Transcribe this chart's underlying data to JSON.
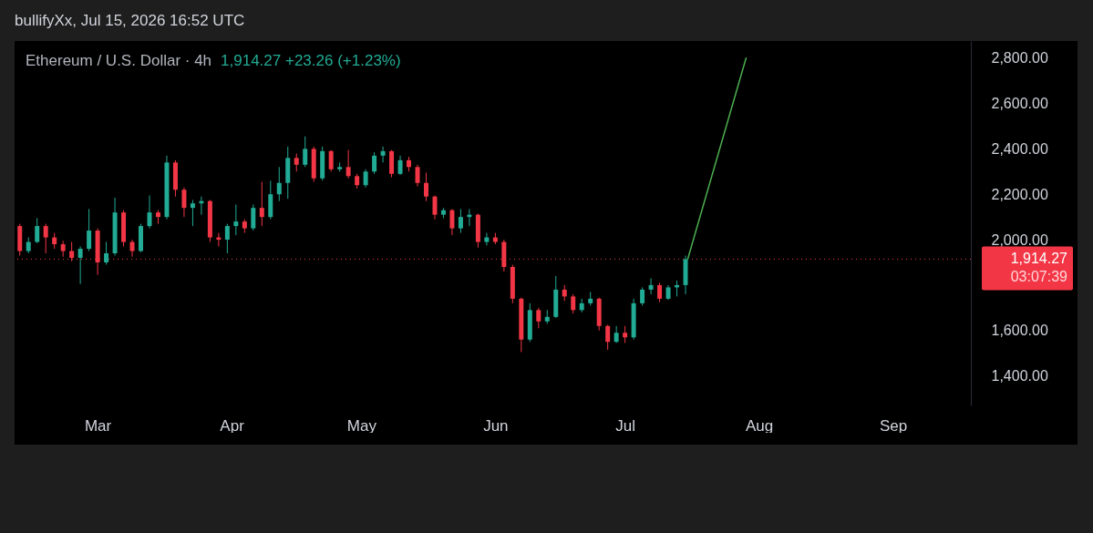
{
  "chart_data": {
    "type": "candlestick",
    "title": "Ethereum / U.S. Dollar · 4h",
    "subtitle": "1,914.27 +23.26 (+1.23%)",
    "annotations": [
      "bullifyXx, Jul 15, 2026 16:52 UTC",
      "03:07:39"
    ],
    "x": [
      "2026-02-11",
      "2026-02-13",
      "2026-02-15",
      "2026-02-17",
      "2026-02-19",
      "2026-02-21",
      "2026-02-23",
      "2026-02-25",
      "2026-02-27",
      "2026-03-01",
      "2026-03-03",
      "2026-03-05",
      "2026-03-07",
      "2026-03-09",
      "2026-03-11",
      "2026-03-13",
      "2026-03-15",
      "2026-03-17",
      "2026-03-19",
      "2026-03-21",
      "2026-03-23",
      "2026-03-25",
      "2026-03-27",
      "2026-03-29",
      "2026-03-31",
      "2026-04-02",
      "2026-04-04",
      "2026-04-06",
      "2026-04-08",
      "2026-04-10",
      "2026-04-12",
      "2026-04-14",
      "2026-04-16",
      "2026-04-18",
      "2026-04-20",
      "2026-04-22",
      "2026-04-24",
      "2026-04-26",
      "2026-04-28",
      "2026-04-30",
      "2026-05-02",
      "2026-05-04",
      "2026-05-06",
      "2026-05-08",
      "2026-05-10",
      "2026-05-12",
      "2026-05-14",
      "2026-05-16",
      "2026-05-18",
      "2026-05-20",
      "2026-05-22",
      "2026-05-24",
      "2026-05-26",
      "2026-05-28",
      "2026-05-30",
      "2026-06-01",
      "2026-06-03",
      "2026-06-05",
      "2026-06-07",
      "2026-06-09",
      "2026-06-11",
      "2026-06-13",
      "2026-06-15",
      "2026-06-17",
      "2026-06-19",
      "2026-06-21",
      "2026-06-23",
      "2026-06-25",
      "2026-06-27",
      "2026-06-29",
      "2026-07-01",
      "2026-07-03",
      "2026-07-05",
      "2026-07-07",
      "2026-07-09",
      "2026-07-11",
      "2026-07-13",
      "2026-07-15"
    ],
    "ohlc": [
      [
        2060,
        2070,
        1930,
        1950
      ],
      [
        1950,
        2010,
        1940,
        1990
      ],
      [
        1990,
        2095,
        1985,
        2060
      ],
      [
        2060,
        2070,
        1940,
        2010
      ],
      [
        2010,
        2030,
        1960,
        1980
      ],
      [
        1980,
        1995,
        1925,
        1950
      ],
      [
        1950,
        1990,
        1905,
        1920
      ],
      [
        1920,
        1970,
        1805,
        1960
      ],
      [
        1960,
        2135,
        1950,
        2040
      ],
      [
        2040,
        2050,
        1845,
        1900
      ],
      [
        1900,
        1990,
        1890,
        1940
      ],
      [
        1940,
        2185,
        1930,
        2120
      ],
      [
        2120,
        2130,
        1970,
        1990
      ],
      [
        1990,
        2000,
        1925,
        1950
      ],
      [
        1950,
        2070,
        1945,
        2060
      ],
      [
        2060,
        2195,
        2050,
        2120
      ],
      [
        2120,
        2130,
        2070,
        2100
      ],
      [
        2100,
        2370,
        2090,
        2340
      ],
      [
        2340,
        2350,
        2190,
        2220
      ],
      [
        2220,
        2230,
        2100,
        2140
      ],
      [
        2140,
        2175,
        2060,
        2160
      ],
      [
        2160,
        2190,
        2110,
        2170
      ],
      [
        2170,
        2175,
        1990,
        2010
      ],
      [
        2010,
        2030,
        1970,
        2000
      ],
      [
        2000,
        2070,
        1940,
        2060
      ],
      [
        2060,
        2155,
        2020,
        2080
      ],
      [
        2080,
        2090,
        2030,
        2050
      ],
      [
        2050,
        2155,
        2040,
        2140
      ],
      [
        2140,
        2255,
        2060,
        2100
      ],
      [
        2100,
        2260,
        2090,
        2200
      ],
      [
        2200,
        2320,
        2170,
        2250
      ],
      [
        2250,
        2410,
        2180,
        2360
      ],
      [
        2360,
        2380,
        2300,
        2330
      ],
      [
        2330,
        2455,
        2320,
        2400
      ],
      [
        2400,
        2410,
        2255,
        2270
      ],
      [
        2270,
        2410,
        2260,
        2390
      ],
      [
        2390,
        2395,
        2300,
        2310
      ],
      [
        2310,
        2340,
        2300,
        2320
      ],
      [
        2320,
        2395,
        2270,
        2280
      ],
      [
        2280,
        2290,
        2225,
        2240
      ],
      [
        2240,
        2310,
        2230,
        2300
      ],
      [
        2300,
        2385,
        2290,
        2370
      ],
      [
        2370,
        2410,
        2340,
        2390
      ],
      [
        2390,
        2395,
        2275,
        2290
      ],
      [
        2290,
        2370,
        2285,
        2350
      ],
      [
        2350,
        2365,
        2300,
        2320
      ],
      [
        2320,
        2330,
        2235,
        2250
      ],
      [
        2250,
        2295,
        2170,
        2190
      ],
      [
        2190,
        2195,
        2090,
        2110
      ],
      [
        2110,
        2140,
        2095,
        2130
      ],
      [
        2130,
        2135,
        2020,
        2050
      ],
      [
        2050,
        2135,
        2030,
        2100
      ],
      [
        2100,
        2135,
        2060,
        2110
      ],
      [
        2110,
        2115,
        1965,
        1990
      ],
      [
        1990,
        2030,
        1975,
        2010
      ],
      [
        2010,
        2030,
        1980,
        1990
      ],
      [
        1990,
        2000,
        1860,
        1880
      ],
      [
        1880,
        1890,
        1720,
        1740
      ],
      [
        1740,
        1745,
        1505,
        1560
      ],
      [
        1560,
        1720,
        1550,
        1690
      ],
      [
        1690,
        1700,
        1610,
        1640
      ],
      [
        1640,
        1690,
        1630,
        1660
      ],
      [
        1660,
        1840,
        1655,
        1780
      ],
      [
        1780,
        1800,
        1730,
        1750
      ],
      [
        1750,
        1760,
        1675,
        1690
      ],
      [
        1690,
        1740,
        1680,
        1720
      ],
      [
        1720,
        1770,
        1710,
        1740
      ],
      [
        1740,
        1745,
        1600,
        1620
      ],
      [
        1620,
        1625,
        1515,
        1550
      ],
      [
        1550,
        1620,
        1545,
        1590
      ],
      [
        1590,
        1620,
        1545,
        1570
      ],
      [
        1570,
        1740,
        1560,
        1720
      ],
      [
        1720,
        1790,
        1710,
        1780
      ],
      [
        1780,
        1830,
        1760,
        1800
      ],
      [
        1800,
        1810,
        1725,
        1740
      ],
      [
        1740,
        1800,
        1735,
        1790
      ],
      [
        1790,
        1820,
        1750,
        1800
      ],
      [
        1800,
        1930,
        1760,
        1914.27
      ]
    ],
    "colors": [
      "#f23645",
      "#22ab94",
      "#22ab94",
      "#f23645",
      "#f23645",
      "#f23645",
      "#f23645",
      "#22ab94",
      "#22ab94",
      "#f23645",
      "#22ab94",
      "#22ab94",
      "#f23645",
      "#f23645",
      "#22ab94",
      "#22ab94",
      "#f23645",
      "#22ab94",
      "#f23645",
      "#f23645",
      "#22ab94",
      "#22ab94",
      "#f23645",
      "#f23645",
      "#22ab94",
      "#22ab94",
      "#f23645",
      "#22ab94",
      "#f23645",
      "#22ab94",
      "#22ab94",
      "#22ab94",
      "#f23645",
      "#22ab94",
      "#f23645",
      "#22ab94",
      "#f23645",
      "#22ab94",
      "#f23645",
      "#f23645",
      "#22ab94",
      "#22ab94",
      "#22ab94",
      "#f23645",
      "#22ab94",
      "#f23645",
      "#f23645",
      "#f23645",
      "#f23645",
      "#22ab94",
      "#f23645",
      "#22ab94",
      "#22ab94",
      "#f23645",
      "#22ab94",
      "#f23645",
      "#f23645",
      "#f23645",
      "#f23645",
      "#22ab94",
      "#f23645",
      "#22ab94",
      "#22ab94",
      "#f23645",
      "#f23645",
      "#22ab94",
      "#22ab94",
      "#f23645",
      "#f23645",
      "#22ab94",
      "#f23645",
      "#22ab94",
      "#22ab94",
      "#22ab94",
      "#f23645",
      "#22ab94",
      "#22ab94",
      "#22ab94"
    ],
    "series": [
      {
        "type": "line",
        "color": "#4caf50",
        "x": [
          "2026-07-15T12:00",
          "2026-07-29T00:00"
        ],
        "values": [
          1914.27,
          2800
        ]
      }
    ],
    "ref_lines": [
      {
        "axis": "y",
        "value": 1914.27,
        "label": "1,914.27",
        "color": "#f23645",
        "line_style": "dotted"
      }
    ],
    "xlim": [
      "2026-02-10",
      "2026-09-19"
    ],
    "xticks": [
      {
        "value": "2026-03-01",
        "label": "Mar"
      },
      {
        "value": "2026-04-01",
        "label": "Apr"
      },
      {
        "value": "2026-05-01",
        "label": "May"
      },
      {
        "value": "2026-06-01",
        "label": "Jun"
      },
      {
        "value": "2026-07-01",
        "label": "Jul"
      },
      {
        "value": "2026-08-01",
        "label": "Aug"
      },
      {
        "value": "2026-09-01",
        "label": "Sep"
      }
    ],
    "ylim": [
      1270,
      2875
    ],
    "yticks": [
      {
        "value": 1400,
        "label": "1,400.00"
      },
      {
        "value": 1600,
        "label": "1,600.00"
      },
      {
        "value": 2000,
        "label": "2,000.00"
      },
      {
        "value": 2200,
        "label": "2,200.00"
      },
      {
        "value": 2400,
        "label": "2,400.00"
      },
      {
        "value": 2600,
        "label": "2,600.00"
      },
      {
        "value": 2800,
        "label": "2,800.00"
      }
    ]
  }
}
